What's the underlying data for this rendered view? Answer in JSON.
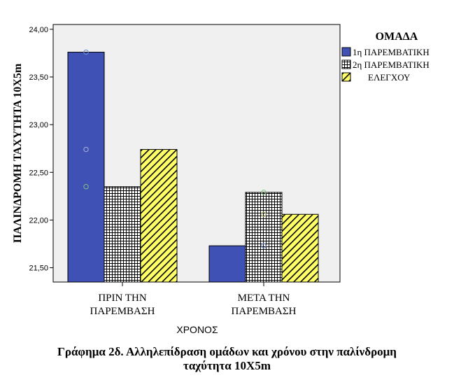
{
  "chart_data": {
    "type": "bar",
    "categories": [
      "ΠΡΙΝ ΤΗΝ ΠΑΡΕΜΒΑΣΗ",
      "ΜΕΤΑ ΤΗΝ ΠΑΡΕΜΒΑΣΗ"
    ],
    "category_lines": [
      [
        "ΠΡΙΝ ΤΗΝ",
        "ΠΑΡΕΜΒΑΣΗ"
      ],
      [
        "ΜΕΤΑ ΤΗΝ",
        "ΠΑΡΕΜΒΑΣΗ"
      ]
    ],
    "series": [
      {
        "name": "1η ΠΑΡΕΜΒΑΤΙΚΗ",
        "values": [
          23.76,
          21.73
        ],
        "fill": "#3f51b5",
        "pattern": "solid"
      },
      {
        "name": "2η ΠΑΡΕΜΒΑΤΙΚΗ",
        "values": [
          22.35,
          22.29
        ],
        "fill": "#ffffff",
        "pattern": "grid"
      },
      {
        "name": "ΕΛΕΓΧΟΥ",
        "values": [
          22.74,
          22.06
        ],
        "fill": "#ffff66",
        "pattern": "diagonal"
      }
    ],
    "markers": [
      {
        "x": "ΠΡΙΝ ΤΗΝ ΠΑΡΕΜΒΑΣΗ",
        "y": 23.76,
        "color": "#6b8fd6"
      },
      {
        "x": "ΠΡΙΝ ΤΗΝ ΠΑΡΕΜΒΑΣΗ",
        "y": 22.74,
        "color": "#b0b0d8"
      },
      {
        "x": "ΠΡΙΝ ΤΗΝ ΠΑΡΕΜΒΑΣΗ",
        "y": 22.35,
        "color": "#7fc77f"
      },
      {
        "x": "ΜΕΤΑ ΤΗΝ ΠΑΡΕΜΒΑΣΗ",
        "y": 22.29,
        "color": "#7fc77f"
      },
      {
        "x": "ΜΕΤΑ ΤΗΝ ΠΑΡΕΜΒΑΣΗ",
        "y": 22.06,
        "color": "#c8c870"
      },
      {
        "x": "ΜΕΤΑ ΤΗΝ ΠΑΡΕΜΒΑΣΗ",
        "y": 21.73,
        "color": "#6b8fd6"
      }
    ],
    "ylim": [
      21.35,
      24.05
    ],
    "yticks": [
      21.5,
      22.0,
      22.5,
      23.0,
      23.5,
      24.0
    ],
    "ytick_labels": [
      "21,50",
      "22,00",
      "22,50",
      "23,00",
      "23,50",
      "24,00"
    ],
    "xlabel": "ΧΡΟΝΟΣ",
    "ylabel": "ΠΑΛΙΝΔΡΟΜΗ ΤΑΧΥΤΗΤΑ 10X5m",
    "legend_title": "ΟΜΑΔΑ",
    "legend_position": "right",
    "plot_background": "#f0f0f0",
    "grid": false
  },
  "caption": {
    "line1": "Γράφημα 2δ. Αλληλεπίδραση ομάδων και χρόνου στην παλίνδρομη",
    "line2": "ταχύτητα 10X5m"
  }
}
